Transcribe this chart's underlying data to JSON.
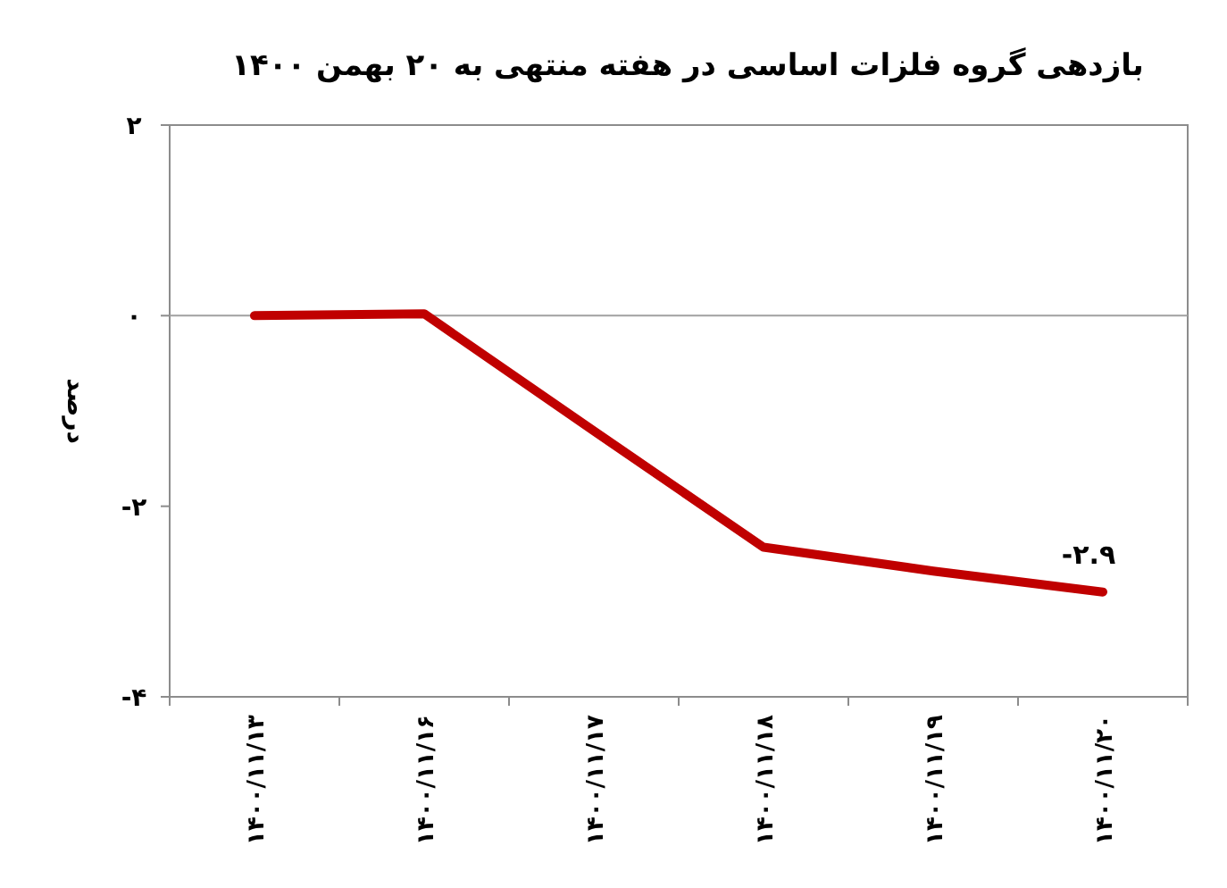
{
  "chart_data": {
    "type": "line",
    "title": "بازدهی گروه فلزات اساسی در هفته منتهی به ۲۰ بهمن ۱۴۰۰",
    "ylabel": "درصد",
    "categories": [
      "۱۴۰۰/۱۱/۱۳",
      "۱۴۰۰/۱۱/۱۶",
      "۱۴۰۰/۱۱/۱۷",
      "۱۴۰۰/۱۱/۱۸",
      "۱۴۰۰/۱۱/۱۹",
      "۱۴۰۰/۱۱/۲۰"
    ],
    "series": [
      {
        "color": "#c00000",
        "values": [
          0,
          0.02,
          -1.21,
          -2.43,
          -2.68,
          -2.9
        ],
        "value_labels": [
          null,
          null,
          null,
          null,
          null,
          "-۲.۹"
        ]
      }
    ],
    "ylim": [
      -4,
      2
    ],
    "yticks": [
      {
        "value": -4,
        "label": "-۴"
      },
      {
        "value": -2,
        "label": "-۲"
      },
      {
        "value": 0,
        "label": "۰"
      },
      {
        "value": 2,
        "label": "۲"
      }
    ],
    "ref_lines": [
      {
        "axis": "y",
        "value": 0,
        "color": "#a0a0a0"
      }
    ],
    "marker": "none",
    "line_style": "solid"
  }
}
